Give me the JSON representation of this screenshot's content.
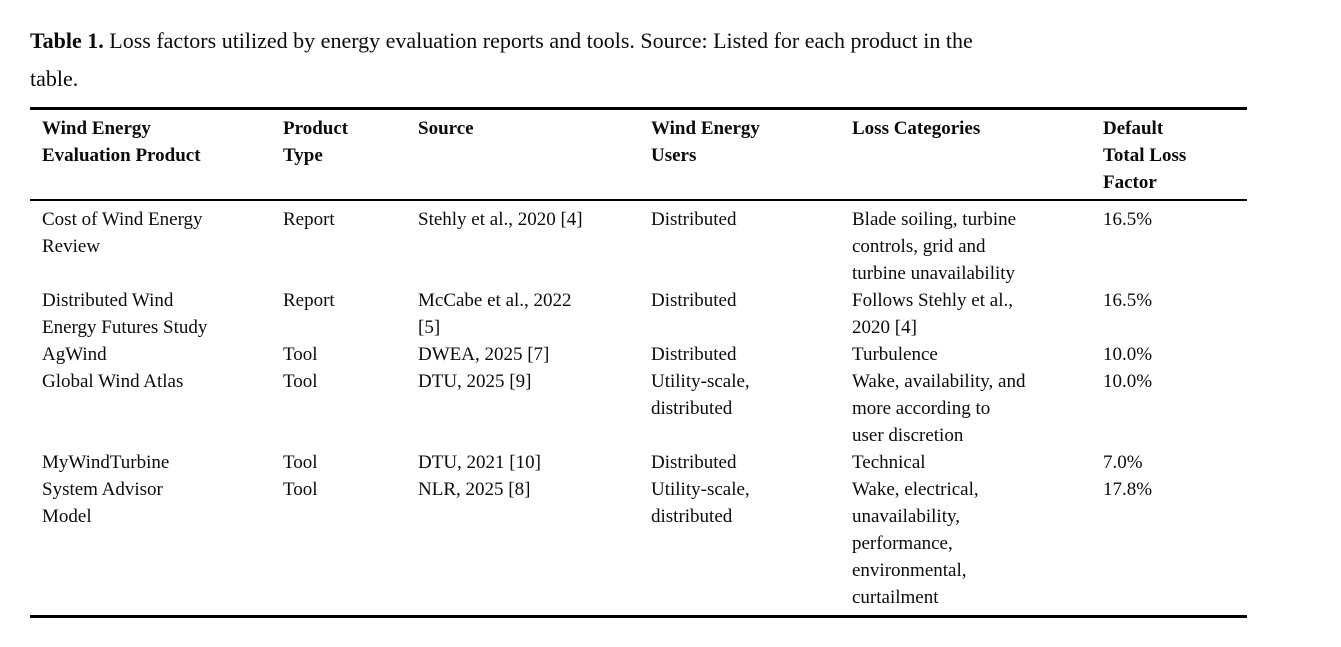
{
  "caption": {
    "label": "Table 1.",
    "text": " Loss factors utilized by energy evaluation reports and tools. Source: Listed for each product in the\ntable."
  },
  "table": {
    "columns": [
      "Wind Energy\nEvaluation Product",
      "Product\nType",
      "Source",
      "Wind Energy\nUsers",
      "Loss Categories",
      "Default\nTotal Loss\nFactor"
    ],
    "rows": [
      {
        "product": "Cost of Wind Energy\nReview",
        "product_type": "Report",
        "source": "Stehly et al., 2020 [4]",
        "users": "Distributed",
        "loss_categories": "Blade soiling, turbine\ncontrols, grid and\nturbine unavailability",
        "default_total_loss_factor": "16.5%"
      },
      {
        "product": "Distributed Wind\nEnergy Futures Study",
        "product_type": "Report",
        "source": "McCabe et al., 2022\n[5]",
        "users": "Distributed",
        "loss_categories": "Follows Stehly et al.,\n2020 [4]",
        "default_total_loss_factor": "16.5%"
      },
      {
        "product": "AgWind",
        "product_type": "Tool",
        "source": "DWEA, 2025 [7]",
        "users": "Distributed",
        "loss_categories": "Turbulence",
        "default_total_loss_factor": "10.0%"
      },
      {
        "product": "Global Wind Atlas",
        "product_type": "Tool",
        "source": "DTU, 2025 [9]",
        "users": "Utility-scale,\ndistributed",
        "loss_categories": "Wake, availability, and\nmore according to\nuser discretion",
        "default_total_loss_factor": "10.0%"
      },
      {
        "product": "MyWindTurbine",
        "product_type": "Tool",
        "source": "DTU, 2021 [10]",
        "users": "Distributed",
        "loss_categories": "Technical",
        "default_total_loss_factor": "7.0%"
      },
      {
        "product": "System Advisor\nModel",
        "product_type": "Tool",
        "source": "NLR, 2025 [8]",
        "users": "Utility-scale,\ndistributed",
        "loss_categories": "Wake, electrical,\nunavailability,\nperformance,\nenvironmental,\ncurtailment",
        "default_total_loss_factor": "17.8%"
      }
    ]
  }
}
